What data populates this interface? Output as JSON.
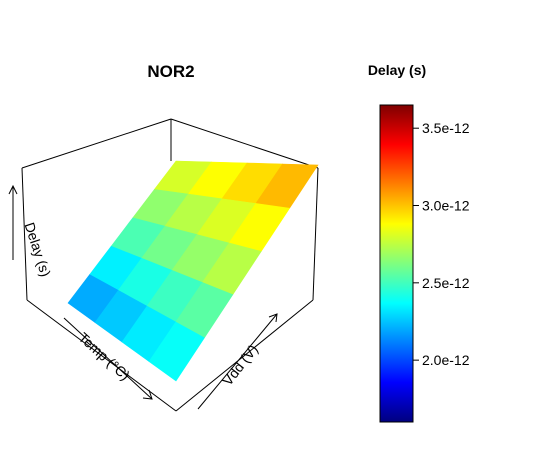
{
  "chart_data": {
    "type": "surface3d",
    "title": "NOR2",
    "axis_labels": {
      "x": "Temp (°C)",
      "y": "Vdd (V)",
      "z": "Delay (s)"
    },
    "grid_rows": [
      [
        2.2e-12,
        2.26e-12,
        2.33e-12,
        2.38e-12
      ],
      [
        2.34e-12,
        2.42e-12,
        2.49e-12,
        2.55e-12
      ],
      [
        2.52e-12,
        2.6e-12,
        2.67e-12,
        2.74e-12
      ],
      [
        2.66e-12,
        2.74e-12,
        2.81e-12,
        2.88e-12
      ],
      [
        2.8e-12,
        2.88e-12,
        2.95e-12,
        3.02e-12
      ]
    ],
    "grid_note_rows": "rows run along the Vdd axis (front/bottom to back/top); columns run along the Temp axis",
    "colorbar": {
      "title": "Delay (s)",
      "range": [
        1.6e-12,
        3.65e-12
      ],
      "ticks": [
        {
          "value": 2e-12,
          "label": "2.0e-12"
        },
        {
          "value": 2.5e-12,
          "label": "2.5e-12"
        },
        {
          "value": 3e-12,
          "label": "3.0e-12"
        },
        {
          "value": 3.5e-12,
          "label": "3.5e-12"
        }
      ],
      "colormap": [
        "#00007f",
        "#0000ff",
        "#007fff",
        "#00ffff",
        "#7fff7f",
        "#ffff00",
        "#ff7f00",
        "#ff0000",
        "#7f0000"
      ]
    }
  }
}
